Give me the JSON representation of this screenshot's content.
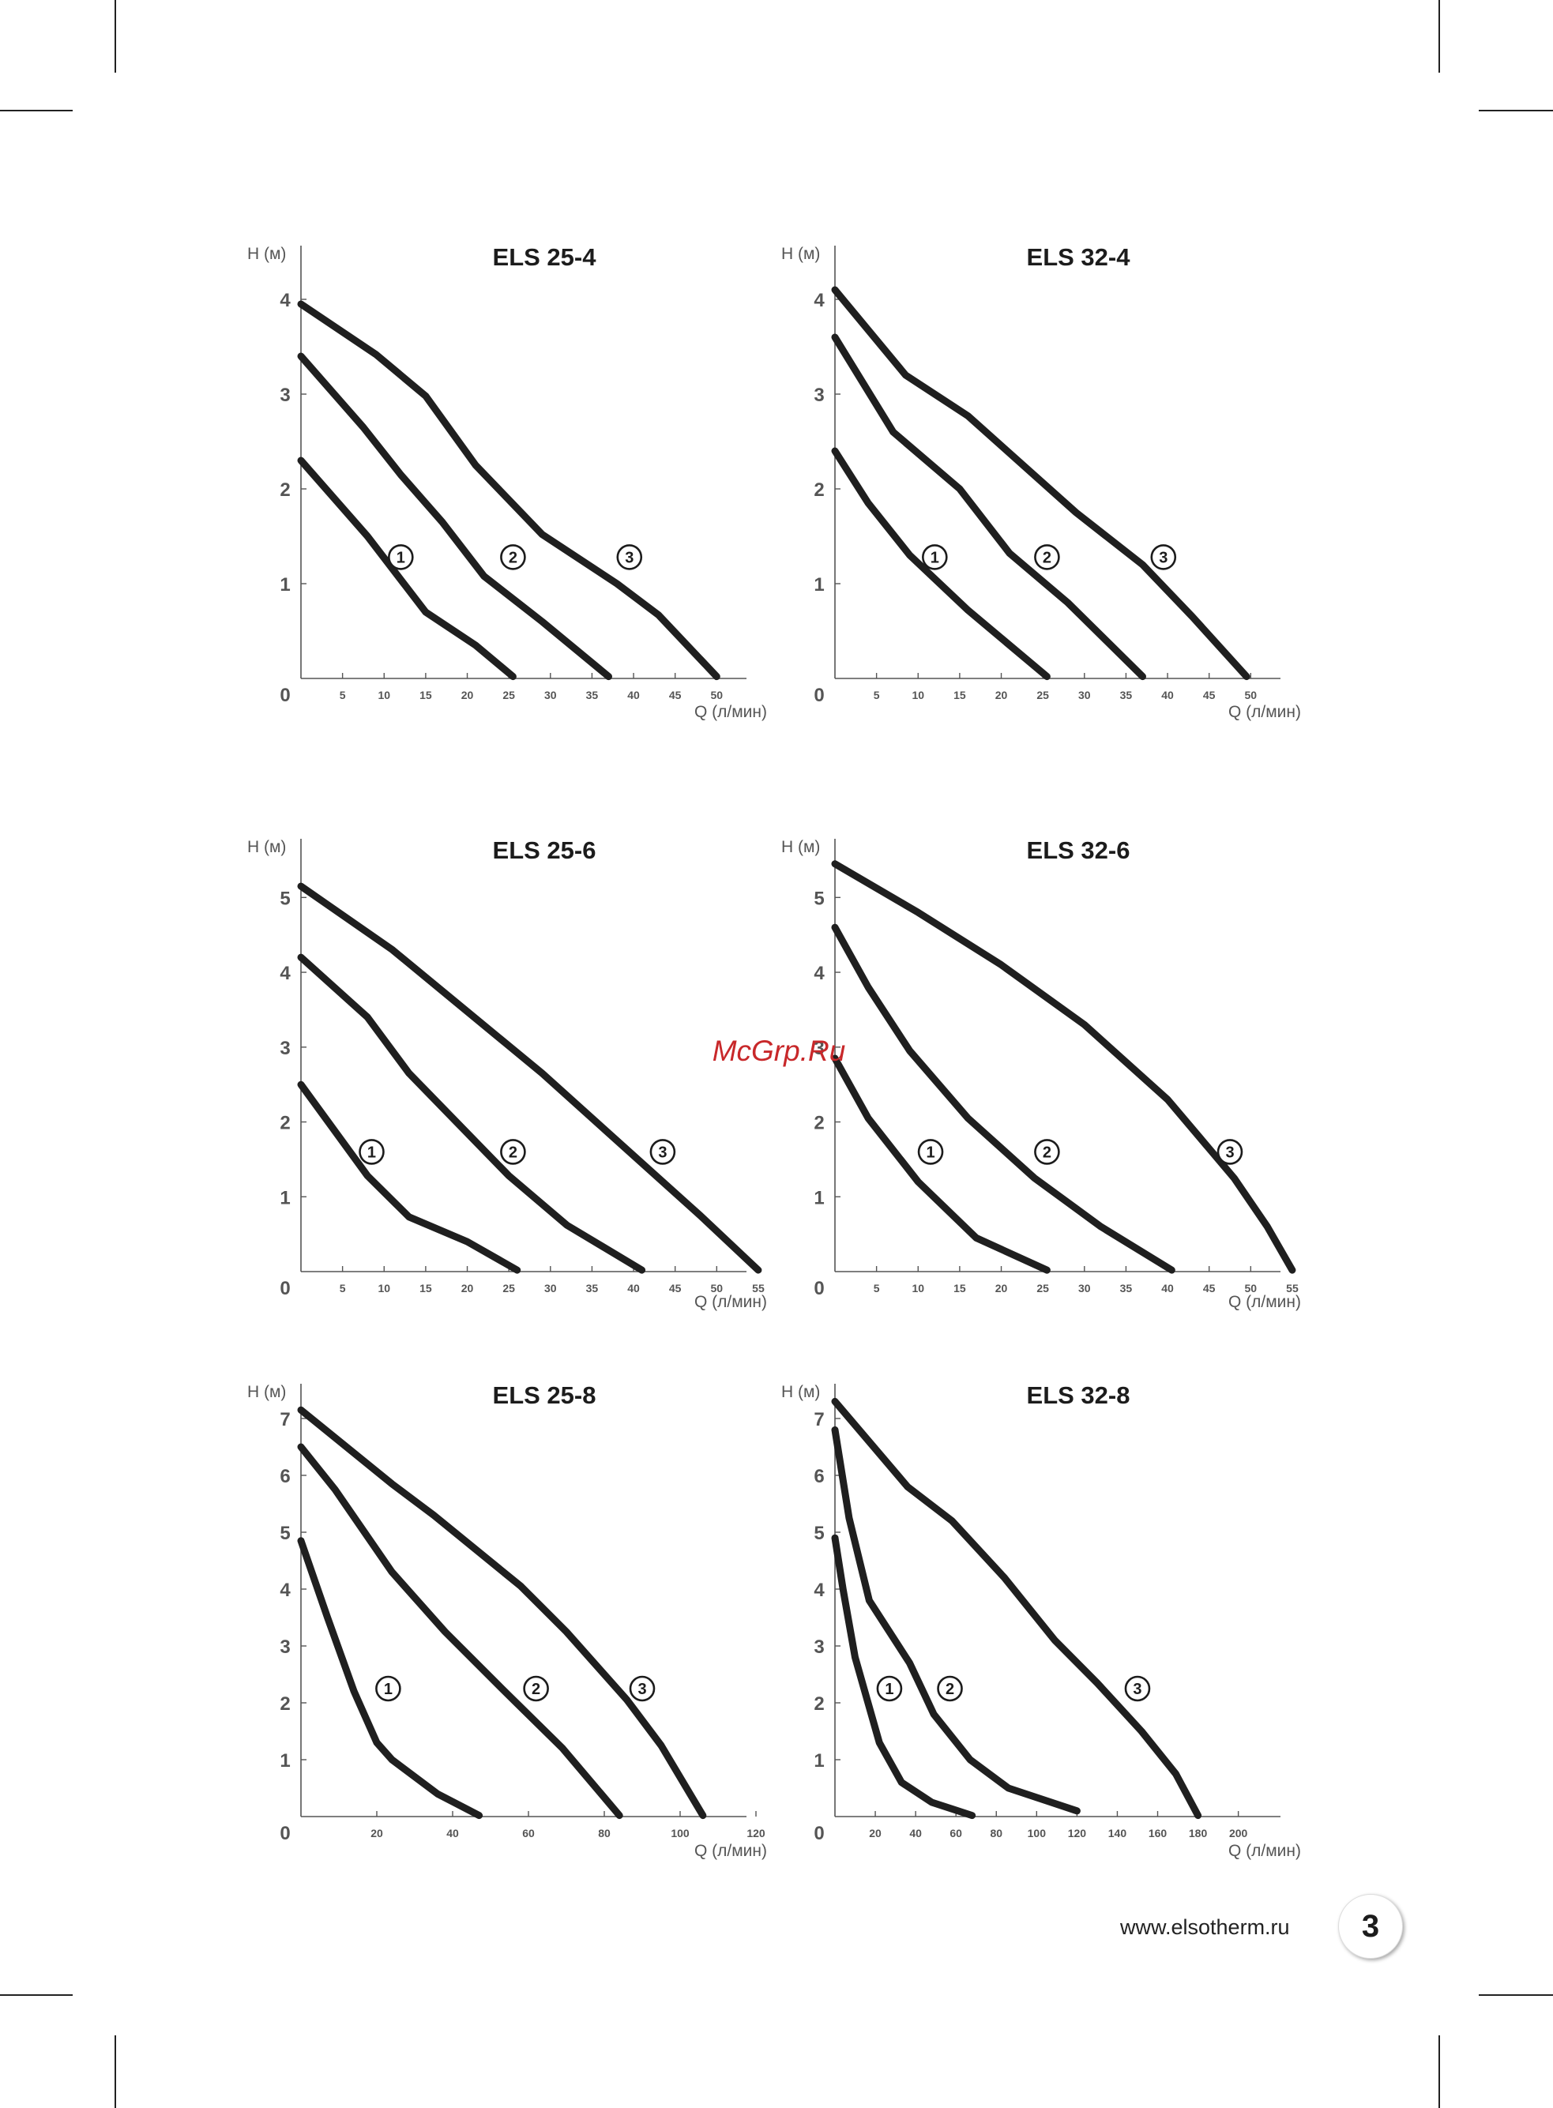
{
  "watermark": "McGrp.Ru",
  "footer": {
    "url": "www.elsotherm.ru",
    "page_number": "3"
  },
  "colors": {
    "curve": "#1f1f1f",
    "axis": "#555555",
    "watermark": "#c8282a"
  },
  "chart_data": [
    {
      "type": "line",
      "title": "ELS 25-4",
      "ylabel": "H (м)",
      "xlabel": "Q (л/мин)",
      "xlim": [
        0,
        57
      ],
      "ylim": [
        0,
        4.5
      ],
      "x_ticks": [
        5,
        10,
        15,
        20,
        25,
        30,
        35,
        40,
        45,
        50
      ],
      "y_ticks": [
        1,
        2,
        3,
        4
      ],
      "y_zero_label": "0",
      "series": [
        {
          "name": "1",
          "points": [
            [
              0,
              2.3
            ],
            [
              8,
              1.5
            ],
            [
              15,
              0.7
            ],
            [
              21,
              0.35
            ],
            [
              25.5,
              0.02
            ]
          ]
        },
        {
          "name": "2",
          "points": [
            [
              0,
              3.4
            ],
            [
              7.5,
              2.65
            ],
            [
              12,
              2.15
            ],
            [
              17,
              1.65
            ],
            [
              22,
              1.08
            ],
            [
              29,
              0.6
            ],
            [
              37,
              0.02
            ]
          ]
        },
        {
          "name": "3",
          "points": [
            [
              0,
              3.95
            ],
            [
              9,
              3.42
            ],
            [
              15,
              2.98
            ],
            [
              21,
              2.25
            ],
            [
              29,
              1.52
            ],
            [
              38,
              1.0
            ],
            [
              43,
              0.67
            ],
            [
              50,
              0.02
            ]
          ]
        }
      ],
      "labels": [
        {
          "text": "1",
          "at": [
            12,
            1.28
          ]
        },
        {
          "text": "2",
          "at": [
            25.5,
            1.28
          ]
        },
        {
          "text": "3",
          "at": [
            39.5,
            1.28
          ]
        }
      ]
    },
    {
      "type": "line",
      "title": "ELS 32-4",
      "ylabel": "H (м)",
      "xlabel": "Q (л/мин)",
      "xlim": [
        0,
        57
      ],
      "ylim": [
        0,
        4.5
      ],
      "x_ticks": [
        5,
        10,
        15,
        20,
        25,
        30,
        35,
        40,
        45,
        50
      ],
      "y_ticks": [
        1,
        2,
        3,
        4
      ],
      "y_zero_label": "0",
      "series": [
        {
          "name": "1",
          "points": [
            [
              0,
              2.4
            ],
            [
              4,
              1.85
            ],
            [
              9,
              1.3
            ],
            [
              16,
              0.72
            ],
            [
              25.5,
              0.02
            ]
          ]
        },
        {
          "name": "2",
          "points": [
            [
              0,
              3.6
            ],
            [
              7,
              2.6
            ],
            [
              15,
              2.0
            ],
            [
              21,
              1.32
            ],
            [
              28,
              0.8
            ],
            [
              37,
              0.02
            ]
          ]
        },
        {
          "name": "3",
          "points": [
            [
              0,
              4.1
            ],
            [
              8.5,
              3.2
            ],
            [
              16,
              2.77
            ],
            [
              29,
              1.75
            ],
            [
              37,
              1.2
            ],
            [
              43,
              0.65
            ],
            [
              49.5,
              0.02
            ]
          ]
        }
      ],
      "labels": [
        {
          "text": "1",
          "at": [
            12,
            1.28
          ]
        },
        {
          "text": "2",
          "at": [
            25.5,
            1.28
          ]
        },
        {
          "text": "3",
          "at": [
            39.5,
            1.28
          ]
        }
      ]
    },
    {
      "type": "line",
      "title": "ELS 25-6",
      "ylabel": "H (м)",
      "xlabel": "Q (л/мин)",
      "xlim": [
        0,
        57
      ],
      "ylim": [
        0,
        5.7
      ],
      "x_ticks": [
        5,
        10,
        15,
        20,
        25,
        30,
        35,
        40,
        45,
        50,
        55
      ],
      "y_ticks": [
        1,
        2,
        3,
        4,
        5
      ],
      "y_zero_label": "0",
      "series": [
        {
          "name": "1",
          "points": [
            [
              0,
              2.5
            ],
            [
              8,
              1.28
            ],
            [
              13,
              0.73
            ],
            [
              20,
              0.4
            ],
            [
              26,
              0.02
            ]
          ]
        },
        {
          "name": "2",
          "points": [
            [
              0,
              4.2
            ],
            [
              8,
              3.4
            ],
            [
              13,
              2.65
            ],
            [
              25,
              1.28
            ],
            [
              32,
              0.62
            ],
            [
              41,
              0.02
            ]
          ]
        },
        {
          "name": "3",
          "points": [
            [
              0,
              5.15
            ],
            [
              11,
              4.3
            ],
            [
              29,
              2.65
            ],
            [
              48,
              0.75
            ],
            [
              55,
              0.02
            ]
          ]
        }
      ],
      "labels": [
        {
          "text": "1",
          "at": [
            8.5,
            1.6
          ]
        },
        {
          "text": "2",
          "at": [
            25.5,
            1.6
          ]
        },
        {
          "text": "3",
          "at": [
            43.5,
            1.6
          ]
        }
      ]
    },
    {
      "type": "line",
      "title": "ELS 32-6",
      "ylabel": "H (м)",
      "xlabel": "Q (л/мин)",
      "xlim": [
        0,
        57
      ],
      "ylim": [
        0,
        5.7
      ],
      "x_ticks": [
        5,
        10,
        15,
        20,
        25,
        30,
        35,
        40,
        45,
        50,
        55
      ],
      "y_ticks": [
        1,
        2,
        3,
        4,
        5
      ],
      "y_zero_label": "0",
      "series": [
        {
          "name": "1",
          "points": [
            [
              0,
              2.85
            ],
            [
              4,
              2.05
            ],
            [
              10,
              1.2
            ],
            [
              17,
              0.45
            ],
            [
              25.5,
              0.02
            ]
          ]
        },
        {
          "name": "2",
          "points": [
            [
              0,
              4.6
            ],
            [
              4,
              3.8
            ],
            [
              9,
              2.95
            ],
            [
              16,
              2.05
            ],
            [
              24,
              1.25
            ],
            [
              32,
              0.6
            ],
            [
              40.5,
              0.02
            ]
          ]
        },
        {
          "name": "3",
          "points": [
            [
              0,
              5.45
            ],
            [
              10,
              4.8
            ],
            [
              20,
              4.1
            ],
            [
              30,
              3.3
            ],
            [
              40,
              2.3
            ],
            [
              48,
              1.25
            ],
            [
              52,
              0.6
            ],
            [
              55,
              0.02
            ]
          ]
        }
      ],
      "labels": [
        {
          "text": "1",
          "at": [
            11.5,
            1.6
          ]
        },
        {
          "text": "2",
          "at": [
            25.5,
            1.6
          ]
        },
        {
          "text": "3",
          "at": [
            47.5,
            1.6
          ]
        }
      ]
    },
    {
      "type": "line",
      "title": "ELS 25-8",
      "ylabel": "H (м)",
      "xlabel": "Q (л/мин)",
      "xlim": [
        0,
        125
      ],
      "ylim": [
        0,
        7.5
      ],
      "x_ticks": [
        20,
        40,
        60,
        80,
        100,
        120
      ],
      "y_ticks": [
        1,
        2,
        3,
        4,
        5,
        6,
        7
      ],
      "y_zero_label": "0",
      "series": [
        {
          "name": "1",
          "points": [
            [
              0,
              4.85
            ],
            [
              7,
              3.5
            ],
            [
              14,
              2.2
            ],
            [
              20,
              1.3
            ],
            [
              24,
              1.0
            ],
            [
              36,
              0.4
            ],
            [
              47,
              0.02
            ]
          ]
        },
        {
          "name": "2",
          "points": [
            [
              0,
              6.5
            ],
            [
              9,
              5.75
            ],
            [
              24,
              4.3
            ],
            [
              38,
              3.25
            ],
            [
              53,
              2.25
            ],
            [
              69,
              1.2
            ],
            [
              84,
              0.02
            ]
          ]
        },
        {
          "name": "3",
          "points": [
            [
              0,
              7.15
            ],
            [
              24,
              5.85
            ],
            [
              35,
              5.3
            ],
            [
              58,
              4.05
            ],
            [
              70,
              3.25
            ],
            [
              86,
              2.05
            ],
            [
              95,
              1.25
            ],
            [
              106,
              0.02
            ]
          ]
        }
      ],
      "labels": [
        {
          "text": "1",
          "at": [
            23,
            2.25
          ]
        },
        {
          "text": "2",
          "at": [
            62,
            2.25
          ]
        },
        {
          "text": "3",
          "at": [
            90,
            2.25
          ]
        }
      ]
    },
    {
      "type": "line",
      "title": "ELS 32-8",
      "ylabel": "H (м)",
      "xlabel": "Q (л/мин)",
      "xlim": [
        0,
        235
      ],
      "ylim": [
        0,
        7.5
      ],
      "x_ticks": [
        20,
        40,
        60,
        80,
        100,
        120,
        140,
        160,
        180,
        200
      ],
      "y_ticks": [
        1,
        2,
        3,
        4,
        5,
        6,
        7
      ],
      "y_zero_label": "0",
      "series": [
        {
          "name": "1",
          "points": [
            [
              0,
              4.9
            ],
            [
              4,
              4.0
            ],
            [
              10,
              2.8
            ],
            [
              22,
              1.3
            ],
            [
              33,
              0.6
            ],
            [
              48,
              0.25
            ],
            [
              68,
              0.02
            ]
          ]
        },
        {
          "name": "2",
          "points": [
            [
              0,
              6.8
            ],
            [
              7,
              5.25
            ],
            [
              17,
              3.8
            ],
            [
              37,
              2.7
            ],
            [
              49,
              1.8
            ],
            [
              67,
              1.0
            ],
            [
              86,
              0.5
            ],
            [
              120,
              0.1
            ]
          ]
        },
        {
          "name": "3",
          "points": [
            [
              0,
              7.3
            ],
            [
              18,
              6.55
            ],
            [
              36,
              5.8
            ],
            [
              58,
              5.2
            ],
            [
              84,
              4.2
            ],
            [
              109,
              3.1
            ],
            [
              130,
              2.35
            ],
            [
              152,
              1.5
            ],
            [
              169,
              0.75
            ],
            [
              180,
              0.02
            ]
          ]
        }
      ],
      "labels": [
        {
          "text": "1",
          "at": [
            27,
            2.25
          ]
        },
        {
          "text": "2",
          "at": [
            57,
            2.25
          ]
        },
        {
          "text": "3",
          "at": [
            150,
            2.25
          ]
        }
      ]
    }
  ]
}
